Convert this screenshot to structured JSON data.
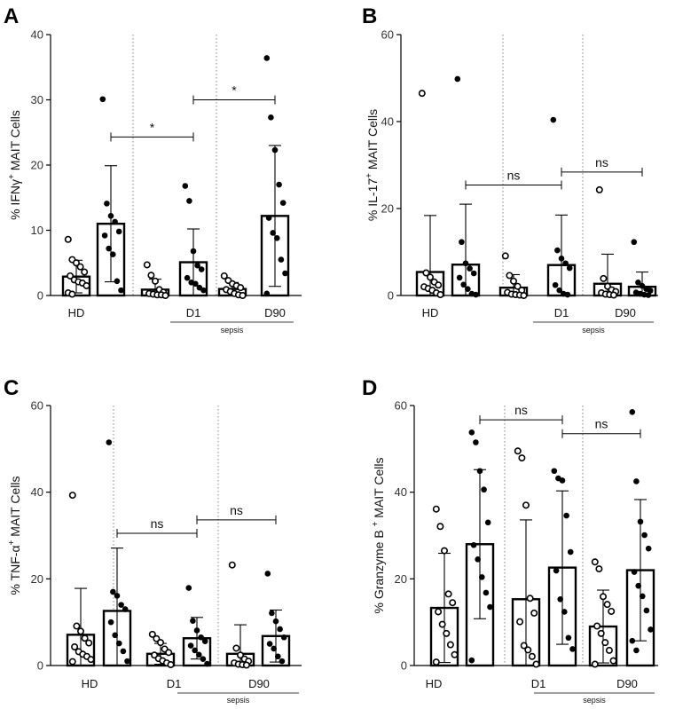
{
  "chart_data": [
    {
      "panel": "A",
      "type": "bar",
      "ylabel_parts": [
        "% IFN",
        "γ",
        "+",
        " MAIT Cells"
      ],
      "ylim": [
        0,
        40
      ],
      "yticks": [
        0,
        10,
        20,
        30,
        40
      ],
      "categories": [
        "HD",
        "D1",
        "D90"
      ],
      "group_label": "sepsis",
      "bars": [
        {
          "fill": "open",
          "mean": 2.9,
          "sd": 2.5,
          "points": [
            8.6,
            5.5,
            5.0,
            4.4,
            3.6,
            3.0,
            2.4,
            2.1,
            1.9,
            1.5,
            0.4,
            0.2
          ]
        },
        {
          "fill": "closed",
          "mean": 11.0,
          "sd": 8.9,
          "points": [
            30.1,
            14.1,
            12.2,
            11.3,
            9.8,
            9.2,
            7.2,
            6.3,
            2.2,
            0.8
          ]
        },
        {
          "fill": "open",
          "mean": 0.9,
          "sd": 1.6,
          "points": [
            4.7,
            3.1,
            2.2,
            0.9,
            0.5,
            0.3,
            0.2,
            0.1,
            0.1,
            0.0
          ]
        },
        {
          "fill": "closed",
          "mean": 5.1,
          "sd": 5.1,
          "points": [
            16.8,
            14.5,
            6.8,
            4.6,
            4.0,
            2.7,
            2.0,
            1.8,
            1.2,
            0.8
          ]
        },
        {
          "fill": "open",
          "mean": 1.0,
          "sd": 1.0,
          "points": [
            3.0,
            2.3,
            1.8,
            1.5,
            1.2,
            0.9,
            0.6,
            0.3,
            0.1,
            0.0
          ]
        },
        {
          "fill": "closed",
          "mean": 12.2,
          "sd": 10.8,
          "points": [
            36.4,
            27.3,
            22.3,
            17.0,
            14.2,
            11.9,
            9.6,
            8.8,
            5.5,
            3.4,
            0.3
          ]
        }
      ],
      "comparisons": [
        {
          "from": 1,
          "to": 3,
          "y": 24.3,
          "label": "*"
        },
        {
          "from": 3,
          "to": 5,
          "y": 30.0,
          "label": "*"
        }
      ]
    },
    {
      "panel": "B",
      "type": "bar",
      "ylabel_parts": [
        "% IL-17",
        "",
        "+",
        " MAIT Cells"
      ],
      "ylim": [
        0,
        60
      ],
      "yticks": [
        0,
        20,
        40,
        60
      ],
      "categories": [
        "HD",
        "D1",
        "D90"
      ],
      "group_label": "sepsis",
      "bars": [
        {
          "fill": "open",
          "mean": 5.4,
          "sd": 13.0,
          "points": [
            46.5,
            5.2,
            4.2,
            3.1,
            2.4,
            2.0,
            1.6,
            1.2,
            0.6,
            0.2
          ]
        },
        {
          "fill": "closed",
          "mean": 7.1,
          "sd": 13.9,
          "points": [
            49.8,
            12.3,
            7.4,
            6.2,
            5.1,
            4.1,
            2.5,
            1.5,
            0.4,
            0.2
          ]
        },
        {
          "fill": "open",
          "mean": 1.8,
          "sd": 3.0,
          "points": [
            9.1,
            4.6,
            3.3,
            2.1,
            1.2,
            0.7,
            0.3,
            0.2,
            0.1,
            0.0
          ]
        },
        {
          "fill": "closed",
          "mean": 7.0,
          "sd": 11.5,
          "points": [
            40.4,
            10.4,
            8.5,
            7.4,
            6.3,
            2.4,
            1.2,
            0.4,
            0.2
          ]
        },
        {
          "fill": "open",
          "mean": 2.7,
          "sd": 6.8,
          "points": [
            24.3,
            3.9,
            2.1,
            1.3,
            0.9,
            0.6,
            0.3,
            0.2,
            0.1
          ]
        },
        {
          "fill": "closed",
          "mean": 2.0,
          "sd": 3.4,
          "points": [
            12.3,
            3.0,
            2.2,
            1.5,
            1.1,
            0.7,
            0.4,
            0.2,
            0.1
          ]
        }
      ],
      "comparisons": [
        {
          "from": 1,
          "to": 3,
          "y": 25.4,
          "label": "ns"
        },
        {
          "from": 3,
          "to": 5,
          "y": 28.4,
          "label": "ns"
        }
      ]
    },
    {
      "panel": "C",
      "type": "bar",
      "ylabel_parts": [
        "% TNF-α",
        "",
        "+",
        " MAIT Cells"
      ],
      "ylim": [
        0,
        60
      ],
      "yticks": [
        0,
        20,
        40,
        60
      ],
      "categories": [
        "HD",
        "D1",
        "D90"
      ],
      "group_label": "sepsis",
      "bars": [
        {
          "fill": "open",
          "mean": 7.1,
          "sd": 10.7,
          "points": [
            39.3,
            9.1,
            7.9,
            6.3,
            5.2,
            4.3,
            3.2,
            2.6,
            2.1,
            1.4,
            0.9
          ]
        },
        {
          "fill": "closed",
          "mean": 12.6,
          "sd": 14.5,
          "points": [
            51.5,
            17.0,
            16.1,
            14.0,
            13.0,
            10.0,
            7.0,
            5.1,
            3.3,
            1.0
          ]
        },
        {
          "fill": "open",
          "mean": 2.7,
          "sd": 2.4,
          "points": [
            7.2,
            6.2,
            5.3,
            3.8,
            3.0,
            2.4,
            1.6,
            1.1,
            0.6,
            0.2
          ]
        },
        {
          "fill": "closed",
          "mean": 6.3,
          "sd": 4.8,
          "points": [
            17.9,
            10.3,
            8.1,
            6.5,
            5.6,
            4.6,
            3.5,
            2.5,
            1.5,
            0.4
          ]
        },
        {
          "fill": "open",
          "mean": 2.7,
          "sd": 6.7,
          "points": [
            23.2,
            4.0,
            2.4,
            1.5,
            1.0,
            0.6,
            0.3,
            0.2,
            0.1
          ]
        },
        {
          "fill": "closed",
          "mean": 6.8,
          "sd": 6.0,
          "points": [
            21.2,
            12.1,
            10.2,
            8.4,
            6.5,
            5.0,
            3.9,
            2.1,
            1.0
          ]
        }
      ],
      "comparisons": [
        {
          "from": 1,
          "to": 3,
          "y": 30.5,
          "label": "ns"
        },
        {
          "from": 3,
          "to": 5,
          "y": 33.6,
          "label": "ns"
        }
      ]
    },
    {
      "panel": "D",
      "type": "bar",
      "ylabel_parts": [
        "% Granzyme B ",
        "",
        "+",
        " MAIT Cells"
      ],
      "ylim": [
        0,
        60
      ],
      "yticks": [
        0,
        20,
        40,
        60
      ],
      "categories": [
        "HD",
        "D1",
        "D90"
      ],
      "group_label": "sepsis",
      "bars": [
        {
          "fill": "open",
          "mean": 13.3,
          "sd": 12.6,
          "points": [
            36.1,
            32.1,
            26.5,
            16.5,
            14.5,
            12.4,
            9.5,
            7.4,
            4.8,
            2.5,
            0.8
          ]
        },
        {
          "fill": "closed",
          "mean": 28.0,
          "sd": 17.2,
          "points": [
            53.8,
            51.5,
            44.9,
            40.6,
            33.0,
            27.8,
            24.5,
            20.4,
            16.8,
            13.5,
            1.2
          ]
        },
        {
          "fill": "open",
          "mean": 15.3,
          "sd": 18.3,
          "points": [
            49.5,
            47.9,
            37.0,
            15.5,
            12.1,
            10.1,
            4.6,
            3.6,
            2.1,
            0.3
          ]
        },
        {
          "fill": "closed",
          "mean": 22.6,
          "sd": 17.7,
          "points": [
            44.9,
            43.2,
            42.7,
            34.6,
            26.2,
            21.9,
            15.3,
            12.4,
            6.4,
            3.8
          ]
        },
        {
          "fill": "open",
          "mean": 9.0,
          "sd": 8.4,
          "points": [
            23.9,
            22.3,
            15.9,
            14.1,
            12.5,
            9.1,
            7.4,
            5.3,
            3.5,
            1.1,
            0.3
          ]
        },
        {
          "fill": "closed",
          "mean": 22.0,
          "sd": 16.3,
          "points": [
            58.5,
            42.5,
            33.2,
            30.1,
            27.0,
            21.6,
            18.4,
            16.0,
            12.7,
            8.3,
            5.7,
            3.5
          ]
        }
      ],
      "comparisons": [
        {
          "from": 1,
          "to": 3,
          "y": 56.7,
          "label": "ns"
        },
        {
          "from": 3,
          "to": 5,
          "y": 53.5,
          "label": "ns"
        }
      ]
    }
  ]
}
